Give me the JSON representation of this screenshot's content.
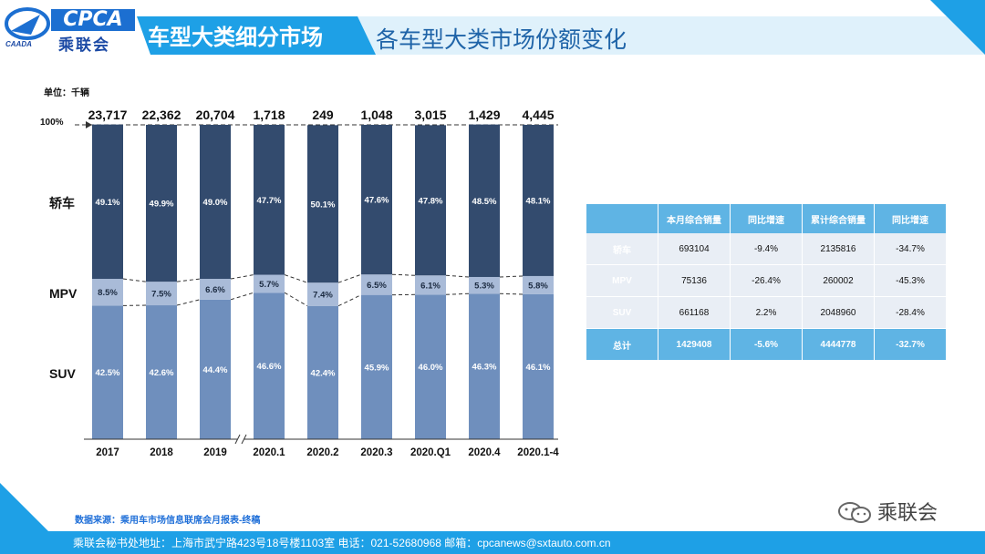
{
  "header": {
    "logo_text": "CPCA",
    "logo_caada": "CAADA",
    "logo_cn": "乘联会",
    "title": "车型大类细分市场",
    "subtitle": "各车型大类市场份额变化"
  },
  "chart_data": {
    "type": "bar",
    "stacked": "percent",
    "unit_label": "单位：千辆",
    "percent_top_label": "100%",
    "categories": [
      "2017",
      "2018",
      "2019",
      "2020.1",
      "2020.2",
      "2020.3",
      "2020.Q1",
      "2020.4",
      "2020.1-4"
    ],
    "totals": [
      "23,717",
      "22,362",
      "20,704",
      "1,718",
      "249",
      "1,048",
      "3,015",
      "1,429",
      "4,445"
    ],
    "axis_break_after": "2019",
    "series": [
      {
        "name": "SUV",
        "values": [
          42.5,
          42.6,
          44.4,
          46.6,
          42.4,
          45.9,
          46.0,
          46.3,
          46.1
        ],
        "color": "#6f8fbd"
      },
      {
        "name": "MPV",
        "values": [
          8.5,
          7.5,
          6.6,
          5.7,
          7.4,
          6.5,
          6.1,
          5.3,
          5.8
        ],
        "color": "#a9bbd8"
      },
      {
        "name": "轿车",
        "values": [
          49.1,
          49.9,
          49.0,
          47.7,
          50.1,
          47.6,
          47.8,
          48.5,
          48.1
        ],
        "color": "#334b6e"
      }
    ],
    "ylim": [
      0,
      100
    ],
    "grid": false
  },
  "table": {
    "headers": [
      "",
      "本月综合销量",
      "同比增速",
      "累计综合销量",
      "同比增速"
    ],
    "rows": [
      {
        "label": "轿车",
        "cells": [
          "693104",
          "-9.4%",
          "2135816",
          "-34.7%"
        ]
      },
      {
        "label": "MPV",
        "cells": [
          "75136",
          "-26.4%",
          "260002",
          "-45.3%"
        ]
      },
      {
        "label": "SUV",
        "cells": [
          "661168",
          "2.2%",
          "2048960",
          "-28.4%"
        ]
      }
    ],
    "total": {
      "label": "总计",
      "cells": [
        "1429408",
        "-5.6%",
        "4444778",
        "-32.7%"
      ]
    }
  },
  "source": "数据来源：乘用车市场信息联席会月报表-终稿",
  "footer": "乘联会秘书处地址：上海市武宁路423号18号楼1103室  电话：021-52680968  邮箱：cpcanews@sxtauto.com.cn",
  "wechat_label": "乘联会",
  "colors": {
    "accent": "#1ea0e6",
    "dark": "#1c4aa5"
  }
}
